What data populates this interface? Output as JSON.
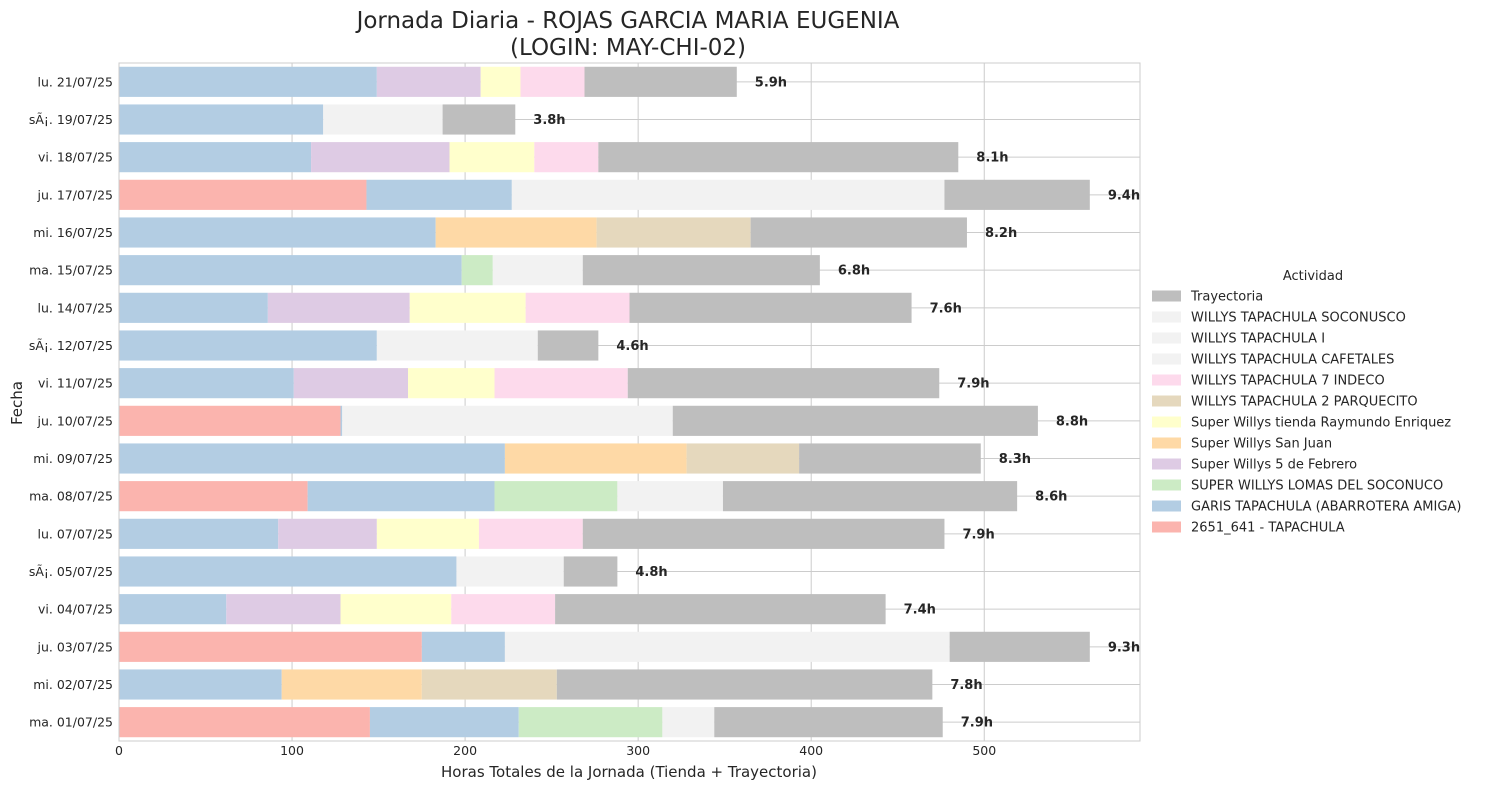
{
  "chart_data": {
    "type": "bar",
    "orientation": "horizontal",
    "stacked": true,
    "title_line1": "Jornada Diaria - ROJAS GARCIA MARIA EUGENIA",
    "title_line2": "(LOGIN: MAY-CHI-02)",
    "xlabel": "Horas Totales de la Jornada (Tienda + Trayectoria)",
    "ylabel": "Fecha",
    "xlim": [
      0,
      590
    ],
    "xticks": [
      0,
      100,
      200,
      300,
      400,
      500
    ],
    "grid": true,
    "legend": {
      "title": "Actividad",
      "placement": "center-right",
      "order": [
        "Trayectoria",
        "WILLYS TAPACHULA SOCONUSCO",
        "WILLYS TAPACHULA I",
        "WILLYS TAPACHULA CAFETALES",
        "WILLYS TAPACHULA 7 INDECO",
        "WILLYS TAPACHULA 2 PARQUECITO",
        "Super Willys tienda Raymundo Enriquez",
        "Super Willys San Juan",
        "Super Willys 5 de Febrero",
        "SUPER WILLYS LOMAS DEL SOCONUCO",
        "GARIS TAPACHULA (ABARROTERA AMIGA)",
        "2651_641 - TAPACHULA"
      ]
    },
    "colors": {
      "2651_641 - TAPACHULA": "#fbb4ae",
      "GARIS TAPACHULA (ABARROTERA AMIGA)": "#b3cde3",
      "SUPER WILLYS LOMAS DEL SOCONUCO": "#ccebc5",
      "Super Willys 5 de Febrero": "#decbe4",
      "Super Willys San Juan": "#fed9a6",
      "Super Willys tienda Raymundo Enriquez": "#ffffcc",
      "WILLYS TAPACHULA 2 PARQUECITO": "#e5d8bd",
      "WILLYS TAPACHULA 7 INDECO": "#fddaec",
      "WILLYS TAPACHULA CAFETALES": "#f2f2f2",
      "WILLYS TAPACHULA I": "#f2f2f2",
      "WILLYS TAPACHULA SOCONUSCO": "#f2f2f2",
      "Trayectoria": "#bebebe"
    },
    "rows": [
      {
        "date": "lu. 21/07/25",
        "total_label": "5.9h",
        "segments": [
          {
            "activity": "GARIS TAPACHULA (ABARROTERA AMIGA)",
            "value": 149
          },
          {
            "activity": "Super Willys 5 de Febrero",
            "value": 60
          },
          {
            "activity": "Super Willys tienda Raymundo Enriquez",
            "value": 23
          },
          {
            "activity": "WILLYS TAPACHULA 7 INDECO",
            "value": 37
          },
          {
            "activity": "Trayectoria",
            "value": 88
          }
        ]
      },
      {
        "date": "sÃ¡. 19/07/25",
        "total_label": "3.8h",
        "segments": [
          {
            "activity": "GARIS TAPACHULA (ABARROTERA AMIGA)",
            "value": 118
          },
          {
            "activity": "WILLYS TAPACHULA I",
            "value": 69
          },
          {
            "activity": "Trayectoria",
            "value": 42
          }
        ]
      },
      {
        "date": "vi. 18/07/25",
        "total_label": "8.1h",
        "segments": [
          {
            "activity": "GARIS TAPACHULA (ABARROTERA AMIGA)",
            "value": 111
          },
          {
            "activity": "Super Willys 5 de Febrero",
            "value": 80
          },
          {
            "activity": "Super Willys tienda Raymundo Enriquez",
            "value": 49
          },
          {
            "activity": "WILLYS TAPACHULA 7 INDECO",
            "value": 37
          },
          {
            "activity": "Trayectoria",
            "value": 208
          }
        ]
      },
      {
        "date": "ju. 17/07/25",
        "total_label": "9.4h",
        "segments": [
          {
            "activity": "2651_641 - TAPACHULA",
            "value": 143
          },
          {
            "activity": "GARIS TAPACHULA (ABARROTERA AMIGA)",
            "value": 84
          },
          {
            "activity": "WILLYS TAPACHULA CAFETALES",
            "value": 250
          },
          {
            "activity": "Trayectoria",
            "value": 84
          }
        ]
      },
      {
        "date": "mi. 16/07/25",
        "total_label": "8.2h",
        "segments": [
          {
            "activity": "GARIS TAPACHULA (ABARROTERA AMIGA)",
            "value": 183
          },
          {
            "activity": "Super Willys San Juan",
            "value": 93
          },
          {
            "activity": "WILLYS TAPACHULA 2 PARQUECITO",
            "value": 89
          },
          {
            "activity": "Trayectoria",
            "value": 125
          }
        ]
      },
      {
        "date": "ma. 15/07/25",
        "total_label": "6.8h",
        "segments": [
          {
            "activity": "GARIS TAPACHULA (ABARROTERA AMIGA)",
            "value": 198
          },
          {
            "activity": "SUPER WILLYS LOMAS DEL SOCONUCO",
            "value": 18
          },
          {
            "activity": "WILLYS TAPACHULA CAFETALES",
            "value": 52
          },
          {
            "activity": "Trayectoria",
            "value": 137
          }
        ]
      },
      {
        "date": "lu. 14/07/25",
        "total_label": "7.6h",
        "segments": [
          {
            "activity": "GARIS TAPACHULA (ABARROTERA AMIGA)",
            "value": 86
          },
          {
            "activity": "Super Willys 5 de Febrero",
            "value": 82
          },
          {
            "activity": "Super Willys tienda Raymundo Enriquez",
            "value": 67
          },
          {
            "activity": "WILLYS TAPACHULA 7 INDECO",
            "value": 60
          },
          {
            "activity": "Trayectoria",
            "value": 163
          }
        ]
      },
      {
        "date": "sÃ¡. 12/07/25",
        "total_label": "4.6h",
        "segments": [
          {
            "activity": "GARIS TAPACHULA (ABARROTERA AMIGA)",
            "value": 149
          },
          {
            "activity": "WILLYS TAPACHULA I",
            "value": 93
          },
          {
            "activity": "Trayectoria",
            "value": 35
          }
        ]
      },
      {
        "date": "vi. 11/07/25",
        "total_label": "7.9h",
        "segments": [
          {
            "activity": "GARIS TAPACHULA (ABARROTERA AMIGA)",
            "value": 101
          },
          {
            "activity": "Super Willys 5 de Febrero",
            "value": 66
          },
          {
            "activity": "Super Willys tienda Raymundo Enriquez",
            "value": 50
          },
          {
            "activity": "WILLYS TAPACHULA 7 INDECO",
            "value": 77
          },
          {
            "activity": "Trayectoria",
            "value": 180
          }
        ]
      },
      {
        "date": "ju. 10/07/25",
        "total_label": "8.8h",
        "segments": [
          {
            "activity": "2651_641 - TAPACHULA",
            "value": 128
          },
          {
            "activity": "GARIS TAPACHULA (ABARROTERA AMIGA)",
            "value": 1
          },
          {
            "activity": "WILLYS TAPACHULA CAFETALES",
            "value": 191
          },
          {
            "activity": "Trayectoria",
            "value": 211
          }
        ]
      },
      {
        "date": "mi. 09/07/25",
        "total_label": "8.3h",
        "segments": [
          {
            "activity": "GARIS TAPACHULA (ABARROTERA AMIGA)",
            "value": 223
          },
          {
            "activity": "Super Willys San Juan",
            "value": 105
          },
          {
            "activity": "WILLYS TAPACHULA 2 PARQUECITO",
            "value": 65
          },
          {
            "activity": "Trayectoria",
            "value": 105
          }
        ]
      },
      {
        "date": "ma. 08/07/25",
        "total_label": "8.6h",
        "segments": [
          {
            "activity": "2651_641 - TAPACHULA",
            "value": 109
          },
          {
            "activity": "GARIS TAPACHULA (ABARROTERA AMIGA)",
            "value": 108
          },
          {
            "activity": "SUPER WILLYS LOMAS DEL SOCONUCO",
            "value": 71
          },
          {
            "activity": "WILLYS TAPACHULA CAFETALES",
            "value": 61
          },
          {
            "activity": "Trayectoria",
            "value": 170
          }
        ]
      },
      {
        "date": "lu. 07/07/25",
        "total_label": "7.9h",
        "segments": [
          {
            "activity": "GARIS TAPACHULA (ABARROTERA AMIGA)",
            "value": 92
          },
          {
            "activity": "Super Willys 5 de Febrero",
            "value": 57
          },
          {
            "activity": "Super Willys tienda Raymundo Enriquez",
            "value": 59
          },
          {
            "activity": "WILLYS TAPACHULA 7 INDECO",
            "value": 60
          },
          {
            "activity": "Trayectoria",
            "value": 209
          }
        ]
      },
      {
        "date": "sÃ¡. 05/07/25",
        "total_label": "4.8h",
        "segments": [
          {
            "activity": "GARIS TAPACHULA (ABARROTERA AMIGA)",
            "value": 195
          },
          {
            "activity": "WILLYS TAPACHULA I",
            "value": 62
          },
          {
            "activity": "Trayectoria",
            "value": 31
          }
        ]
      },
      {
        "date": "vi. 04/07/25",
        "total_label": "7.4h",
        "segments": [
          {
            "activity": "GARIS TAPACHULA (ABARROTERA AMIGA)",
            "value": 62
          },
          {
            "activity": "Super Willys 5 de Febrero",
            "value": 66
          },
          {
            "activity": "Super Willys tienda Raymundo Enriquez",
            "value": 64
          },
          {
            "activity": "WILLYS TAPACHULA 7 INDECO",
            "value": 60
          },
          {
            "activity": "Trayectoria",
            "value": 191
          }
        ]
      },
      {
        "date": "ju. 03/07/25",
        "total_label": "9.3h",
        "segments": [
          {
            "activity": "2651_641 - TAPACHULA",
            "value": 175
          },
          {
            "activity": "GARIS TAPACHULA (ABARROTERA AMIGA)",
            "value": 48
          },
          {
            "activity": "WILLYS TAPACHULA CAFETALES",
            "value": 257
          },
          {
            "activity": "Trayectoria",
            "value": 81
          }
        ]
      },
      {
        "date": "mi. 02/07/25",
        "total_label": "7.8h",
        "segments": [
          {
            "activity": "GARIS TAPACHULA (ABARROTERA AMIGA)",
            "value": 94
          },
          {
            "activity": "Super Willys San Juan",
            "value": 81
          },
          {
            "activity": "WILLYS TAPACHULA 2 PARQUECITO",
            "value": 78
          },
          {
            "activity": "Trayectoria",
            "value": 217
          }
        ]
      },
      {
        "date": "ma. 01/07/25",
        "total_label": "7.9h",
        "segments": [
          {
            "activity": "2651_641 - TAPACHULA",
            "value": 145
          },
          {
            "activity": "GARIS TAPACHULA (ABARROTERA AMIGA)",
            "value": 86
          },
          {
            "activity": "SUPER WILLYS LOMAS DEL SOCONUCO",
            "value": 83
          },
          {
            "activity": "WILLYS TAPACHULA SOCONUSCO",
            "value": 30
          },
          {
            "activity": "Trayectoria",
            "value": 132
          }
        ]
      }
    ]
  }
}
